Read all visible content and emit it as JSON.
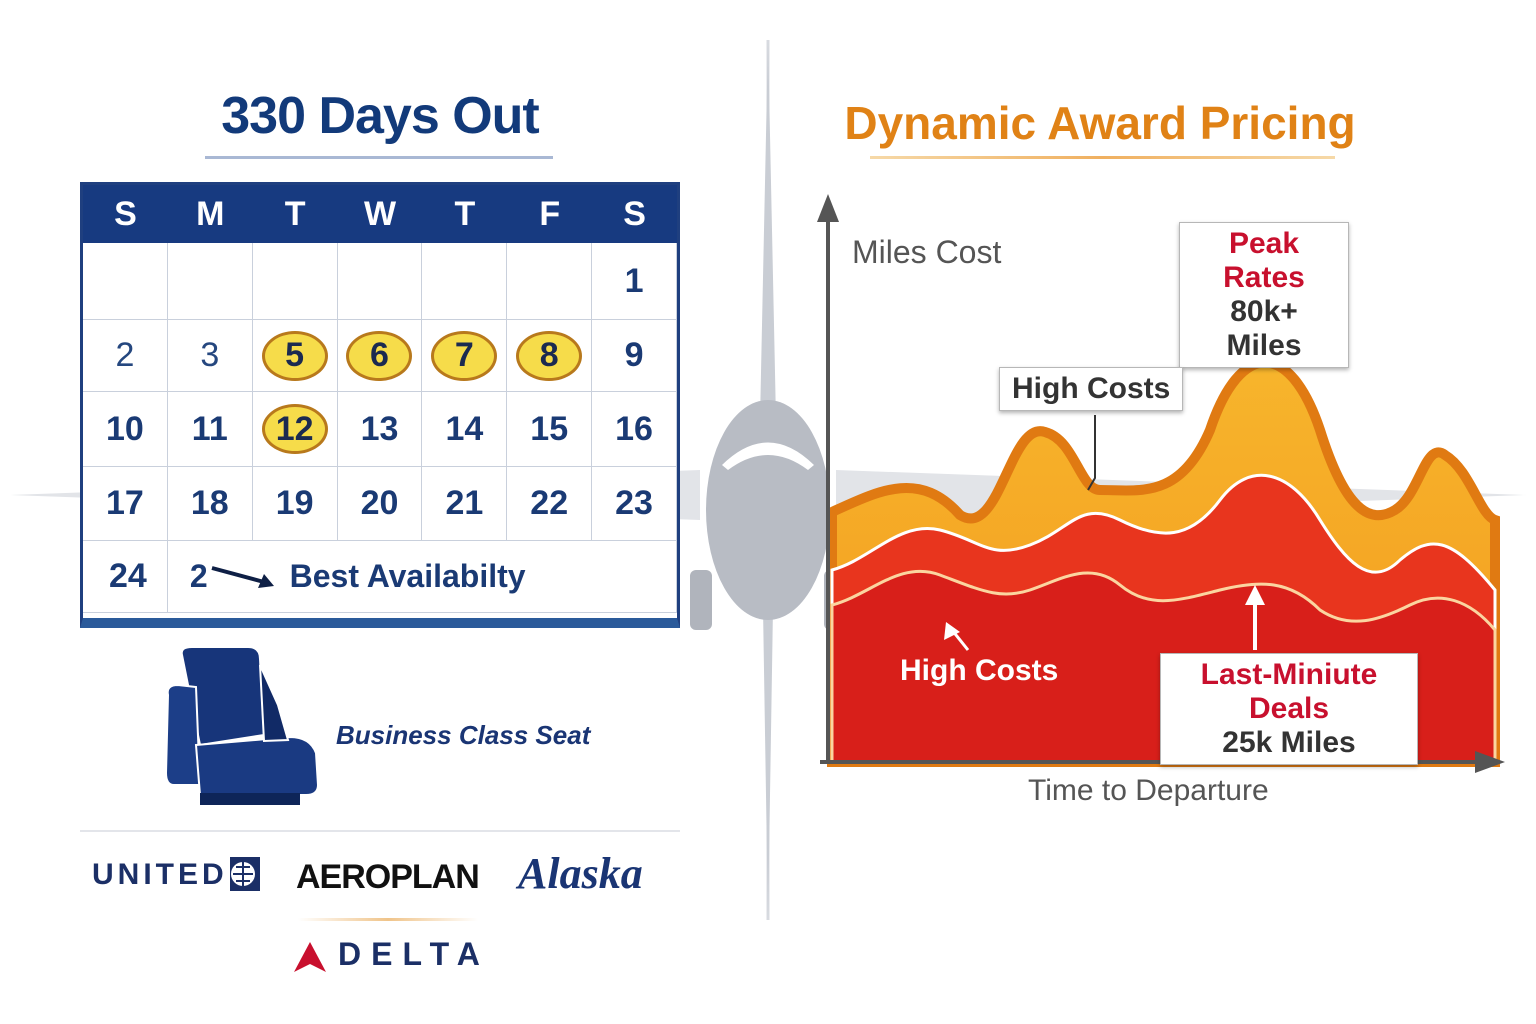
{
  "left": {
    "title": "330 Days Out",
    "calendar": {
      "weekdays": [
        "S",
        "M",
        "T",
        "W",
        "T",
        "F",
        "S"
      ],
      "rows": [
        [
          "",
          "",
          "",
          "",
          "",
          "",
          "1"
        ],
        [
          "2",
          "3",
          "5",
          "6",
          "7",
          "8",
          "9"
        ],
        [
          "10",
          "11",
          "12",
          "13",
          "14",
          "15",
          "16"
        ],
        [
          "17",
          "18",
          "19",
          "20",
          "21",
          "22",
          "23"
        ]
      ],
      "highlighted_days": [
        "5",
        "6",
        "7",
        "8",
        "12"
      ],
      "last_row_first": "24",
      "last_row_partial": "2",
      "best_label": "Best Availabilty"
    },
    "seat_label": "Business Class Seat",
    "logos": [
      "UNITED",
      "AEROPLAN",
      "Alaska",
      "DELTA"
    ]
  },
  "right": {
    "title": "Dynamic Award Pricing",
    "y_label": "Miles Cost",
    "x_label": "Time to Departure",
    "callouts": {
      "peak_title": "Peak Rates",
      "peak_value": "80k+ Miles",
      "high_costs_upper": "High Costs",
      "high_costs_lower": "High Costs",
      "deals_title": "Last-Miniute Deals",
      "deals_value": "25k Miles"
    }
  },
  "colors": {
    "navy": "#173a80",
    "orange": "#e08216",
    "red": "#c8102e",
    "highlight": "#f6dc4a"
  }
}
